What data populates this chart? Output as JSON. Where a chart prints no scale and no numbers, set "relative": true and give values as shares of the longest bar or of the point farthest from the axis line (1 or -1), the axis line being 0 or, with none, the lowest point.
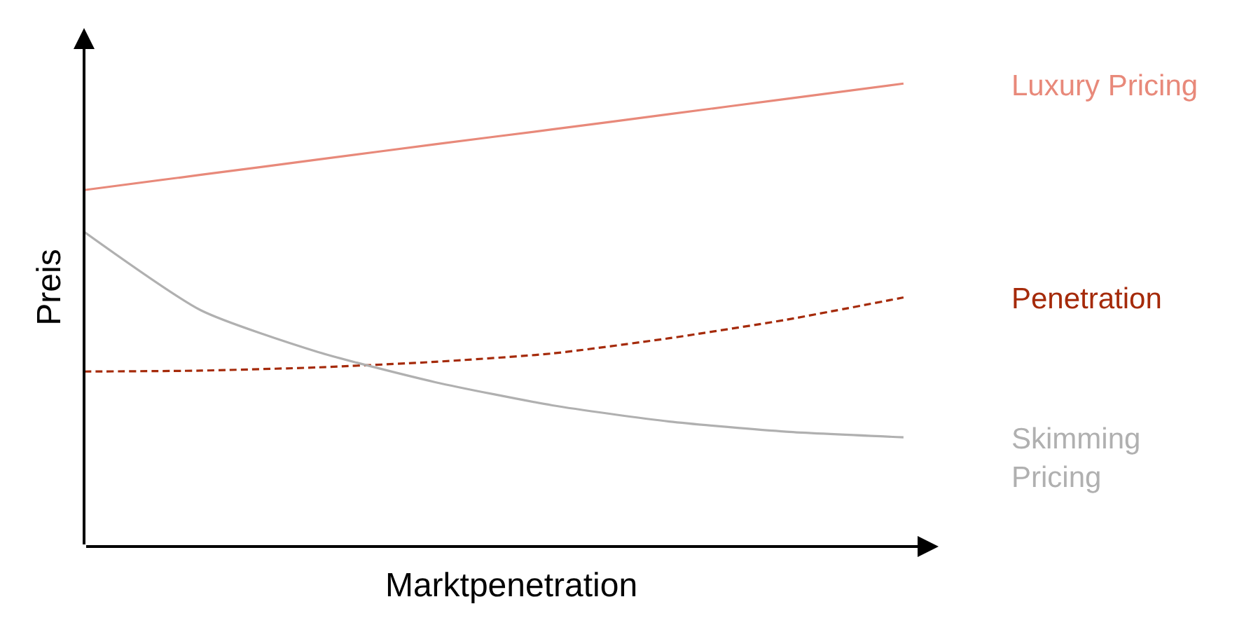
{
  "chart_data": {
    "type": "line",
    "relative": true,
    "xlabel": "Marktpenetration",
    "ylabel": "Preis",
    "categories": [
      null,
      null,
      null,
      null,
      null,
      null,
      null,
      null
    ],
    "legend": false,
    "marker": "none",
    "series": [
      {
        "name": "Luxury Pricing",
        "color": "#e8897a",
        "line_style": "solid",
        "values": [
          0.77,
          0.803,
          0.836,
          0.869,
          0.901,
          0.934,
          0.967,
          1.0
        ]
      },
      {
        "name": "Penetration",
        "color": "#a52a0a",
        "line_style": "dashed",
        "values": [
          0.378,
          0.38,
          0.387,
          0.399,
          0.417,
          0.45,
          0.49,
          0.538
        ]
      },
      {
        "name": "Skimming\nPricing",
        "color": "#b0b0b0",
        "line_style": "solid",
        "values": [
          0.68,
          0.51,
          0.42,
          0.355,
          0.305,
          0.27,
          0.248,
          0.236
        ]
      }
    ]
  }
}
